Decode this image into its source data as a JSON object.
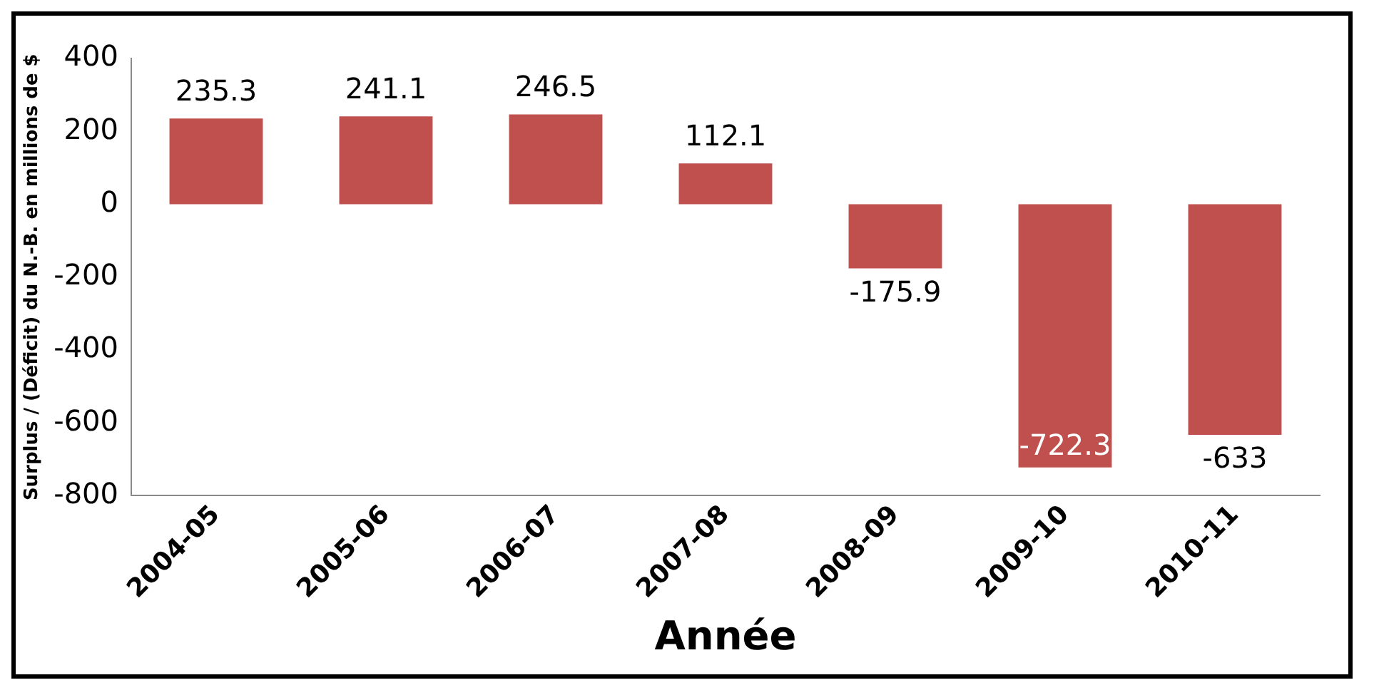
{
  "chart_data": {
    "type": "bar",
    "xlabel": "Année",
    "ylabel": "Surplus / (Déficit) du N.-B. en millions de $",
    "categories": [
      "2004-05",
      "2005-06",
      "2006-07",
      "2007-08",
      "2008-09",
      "2009-10",
      "2010-11"
    ],
    "values": [
      235.3,
      241.1,
      246.5,
      112.1,
      -175.9,
      -722.3,
      -633
    ],
    "color": "#c0504d",
    "ylim": [
      -800,
      400
    ],
    "yticks": [
      -800,
      -600,
      -400,
      -200,
      0,
      200,
      400
    ],
    "grid": false,
    "legend": false,
    "data_labels": true
  }
}
